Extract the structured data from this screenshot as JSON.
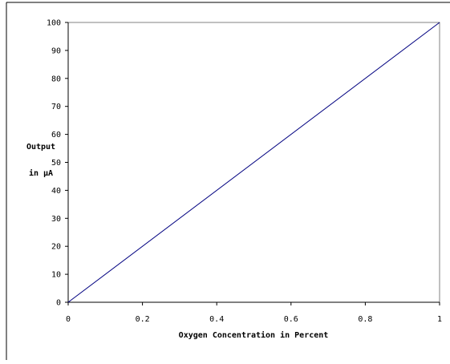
{
  "chart_data": {
    "type": "line",
    "title": "",
    "xlabel": "Oxygen Concentration in Percent",
    "ylabel_lines": [
      "Output",
      "in µA"
    ],
    "xlim": [
      0,
      1
    ],
    "ylim": [
      0,
      100
    ],
    "xticks": [
      "0",
      "0.2",
      "0.4",
      "0.6",
      "0.8",
      "1"
    ],
    "yticks": [
      "0",
      "10",
      "20",
      "30",
      "40",
      "50",
      "60",
      "70",
      "80",
      "90",
      "100"
    ],
    "grid": false,
    "legend": "none",
    "series": [
      {
        "color": "#000080",
        "x": [
          0,
          1
        ],
        "y": [
          0,
          100
        ]
      }
    ]
  }
}
